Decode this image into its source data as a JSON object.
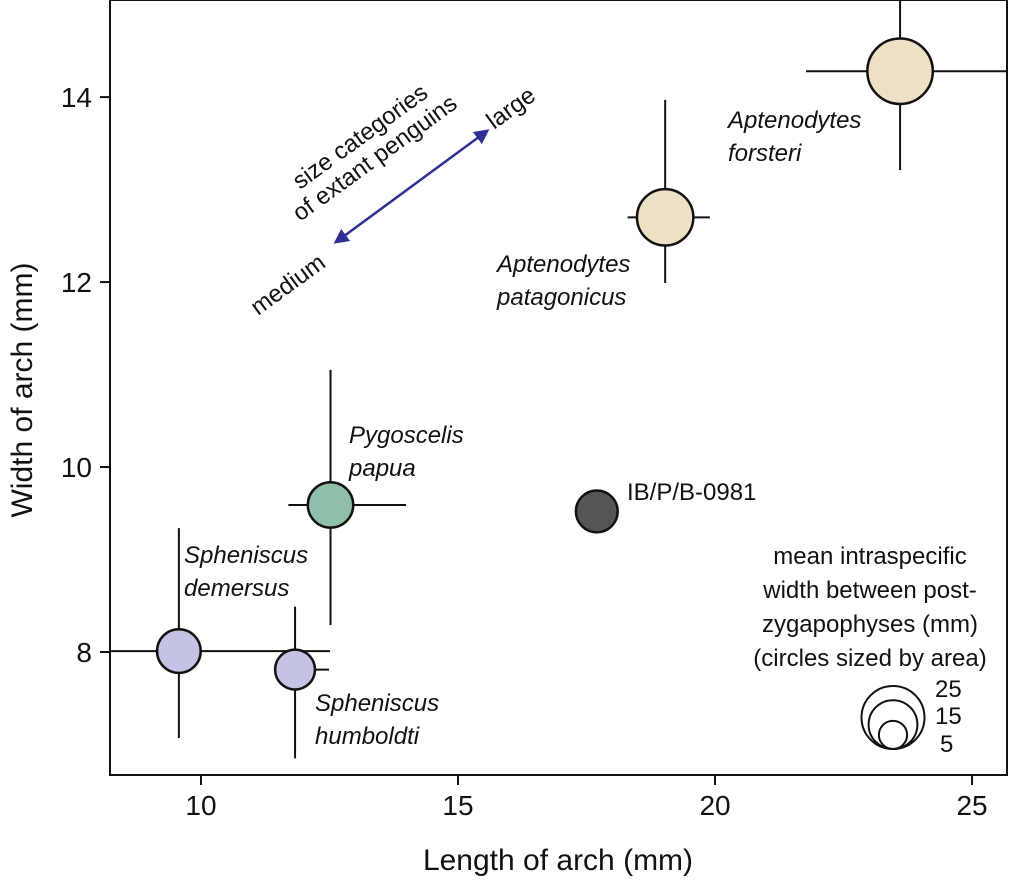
{
  "chart_data": {
    "type": "scatter",
    "xlabel": "Length of arch (mm)",
    "ylabel": "Width of arch (mm)",
    "xlim": [
      8.23,
      25.68
    ],
    "ylim": [
      6.67,
      15.05
    ],
    "xticks": [
      "10",
      "15",
      "20",
      "25"
    ],
    "xtick_values": [
      10,
      15,
      20,
      25
    ],
    "yticks": [
      "8",
      "10",
      "12",
      "14"
    ],
    "ytick_values": [
      8,
      10,
      12,
      14
    ],
    "grid": false,
    "points": [
      {
        "name": "Aptenodytes forsteri",
        "line1": "Aptenodytes",
        "line2": "forsteri",
        "x": 23.6,
        "y": 14.28,
        "size": 27,
        "xerr": [
          21.77,
          25.9
        ],
        "yerr": [
          13.21,
          15.3
        ],
        "color": "#ede0c4"
      },
      {
        "name": "Aptenodytes patagonicus",
        "line1": "Aptenodytes",
        "line2": "patagonicus",
        "x": 19.03,
        "y": 12.7,
        "size": 20,
        "xerr": [
          18.3,
          19.9
        ],
        "yerr": [
          11.99,
          13.97
        ],
        "color": "#ede0c4"
      },
      {
        "name": "Pygoscelis papua",
        "line1": "Pygoscelis",
        "line2": "papua",
        "x": 12.52,
        "y": 9.59,
        "size": 13,
        "xerr": [
          11.7,
          13.99
        ],
        "yerr": [
          8.29,
          11.05
        ],
        "color": "#8fbfa8"
      },
      {
        "name": "IB/P/B-0981",
        "line1": "IB/P/B-0981",
        "line2": "",
        "x": 17.7,
        "y": 9.52,
        "size": 11,
        "xerr": null,
        "yerr": null,
        "color": "#555555"
      },
      {
        "name": "Spheniscus demersus",
        "line1": "Spheniscus",
        "line2": "demersus",
        "x": 9.57,
        "y": 8.01,
        "size": 12,
        "xerr": [
          8.0,
          12.51
        ],
        "yerr": [
          7.07,
          9.34
        ],
        "color": "#c5c3e3"
      },
      {
        "name": "Spheniscus humboldti",
        "line1": "Spheniscus",
        "line2": "humboldti",
        "x": 11.83,
        "y": 7.81,
        "size": 10,
        "xerr": [
          11.5,
          12.49
        ],
        "yerr": [
          6.85,
          8.49
        ],
        "color": "#c5c3e3"
      }
    ],
    "annotation": {
      "line1": "size categories",
      "line2": "of extant penguins",
      "low": "medium",
      "high": "large",
      "arrow_color": "#2e3192"
    },
    "size_legend": {
      "title_lines": [
        "mean intraspecific",
        "width between post-",
        "zygapophyses (mm)",
        "(circles sized by area)"
      ],
      "values": [
        25,
        15,
        5
      ],
      "labels": [
        "25",
        "15",
        "5"
      ]
    }
  }
}
